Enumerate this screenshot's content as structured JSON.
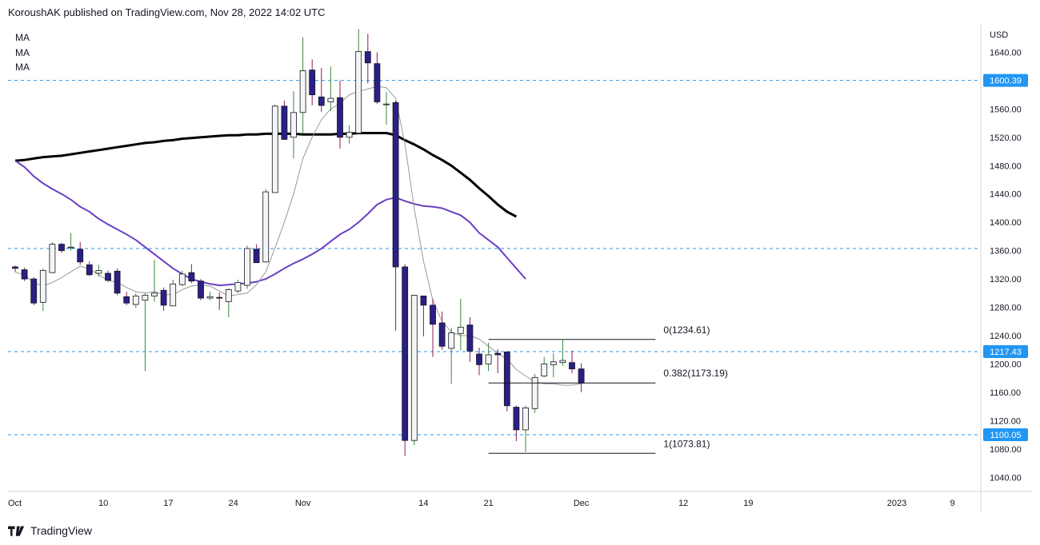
{
  "header": {
    "publisher": "KoroushAK published on TradingView.com, Nov 28, 2022 14:02 UTC"
  },
  "indicators": {
    "labels": [
      "MA",
      "MA",
      "MA"
    ]
  },
  "footer": {
    "brand": "TradingView",
    "logo_icon": "tradingview-logo-icon"
  },
  "colors": {
    "up_body": "#f5f5f5",
    "up_wick": "#3a8a3a",
    "down_body": "#2b1f86",
    "down_wick": "#8e1b55",
    "candle_border": "#131722",
    "ma_short": "#999999",
    "ma_mid": "#6a3fc2",
    "ma_long": "#000000",
    "hline": "#2196f3",
    "tag_bg": "#2196f3"
  },
  "chart_data": {
    "type": "candlestick",
    "y_axis": {
      "currency": "USD",
      "range": [
        1020,
        1680
      ],
      "ticks": [
        1640,
        1600,
        1560,
        1520,
        1480,
        1440,
        1400,
        1360,
        1320,
        1280,
        1240,
        1200,
        1160,
        1120,
        1080,
        1040
      ],
      "tick_labels": [
        "1640.00",
        "1600.00",
        "1560.00",
        "1520.00",
        "1480.00",
        "1440.00",
        "1400.00",
        "1360.00",
        "1320.00",
        "1280.00",
        "1240.00",
        "1200.00",
        "1160.00",
        "1120.00",
        "1080.00",
        "1040.00"
      ]
    },
    "x_axis": {
      "labels": [
        "Oct",
        "10",
        "17",
        "24",
        "Nov",
        "14",
        "21",
        "Dec",
        "12",
        "19",
        "2023",
        "9"
      ],
      "label_index": [
        0,
        9.5,
        16.5,
        23.5,
        31,
        44,
        51,
        61,
        72,
        79,
        95,
        101
      ]
    },
    "candles": [
      {
        "o": 1337,
        "h": 1339,
        "l": 1330,
        "c": 1335
      },
      {
        "o": 1333,
        "h": 1336,
        "l": 1317,
        "c": 1320
      },
      {
        "o": 1320,
        "h": 1323,
        "l": 1283,
        "c": 1286
      },
      {
        "o": 1287,
        "h": 1335,
        "l": 1275,
        "c": 1332
      },
      {
        "o": 1329,
        "h": 1372,
        "l": 1328,
        "c": 1369
      },
      {
        "o": 1369,
        "h": 1371,
        "l": 1357,
        "c": 1360
      },
      {
        "o": 1364,
        "h": 1385,
        "l": 1360,
        "c": 1365
      },
      {
        "o": 1362,
        "h": 1372,
        "l": 1340,
        "c": 1344
      },
      {
        "o": 1340,
        "h": 1345,
        "l": 1324,
        "c": 1326
      },
      {
        "o": 1328,
        "h": 1340,
        "l": 1323,
        "c": 1332
      },
      {
        "o": 1328,
        "h": 1332,
        "l": 1316,
        "c": 1318
      },
      {
        "o": 1331,
        "h": 1335,
        "l": 1297,
        "c": 1300
      },
      {
        "o": 1295,
        "h": 1302,
        "l": 1283,
        "c": 1286
      },
      {
        "o": 1284,
        "h": 1300,
        "l": 1279,
        "c": 1296
      },
      {
        "o": 1290,
        "h": 1300,
        "l": 1190,
        "c": 1297
      },
      {
        "o": 1296,
        "h": 1347,
        "l": 1288,
        "c": 1300
      },
      {
        "o": 1304,
        "h": 1308,
        "l": 1275,
        "c": 1283
      },
      {
        "o": 1282,
        "h": 1319,
        "l": 1282,
        "c": 1313
      },
      {
        "o": 1312,
        "h": 1332,
        "l": 1310,
        "c": 1327
      },
      {
        "o": 1329,
        "h": 1341,
        "l": 1314,
        "c": 1317
      },
      {
        "o": 1317,
        "h": 1320,
        "l": 1290,
        "c": 1293
      },
      {
        "o": 1293,
        "h": 1302,
        "l": 1290,
        "c": 1295
      },
      {
        "o": 1294,
        "h": 1301,
        "l": 1276,
        "c": 1293
      },
      {
        "o": 1288,
        "h": 1307,
        "l": 1266,
        "c": 1305
      },
      {
        "o": 1303,
        "h": 1319,
        "l": 1300,
        "c": 1315
      },
      {
        "o": 1311,
        "h": 1367,
        "l": 1306,
        "c": 1363
      },
      {
        "o": 1362,
        "h": 1369,
        "l": 1343,
        "c": 1343
      },
      {
        "o": 1344,
        "h": 1447,
        "l": 1343,
        "c": 1443
      },
      {
        "o": 1442,
        "h": 1566,
        "l": 1442,
        "c": 1564
      },
      {
        "o": 1564,
        "h": 1572,
        "l": 1517,
        "c": 1517
      },
      {
        "o": 1520,
        "h": 1585,
        "l": 1490,
        "c": 1555
      },
      {
        "o": 1555,
        "h": 1661,
        "l": 1526,
        "c": 1614
      },
      {
        "o": 1615,
        "h": 1630,
        "l": 1565,
        "c": 1580
      },
      {
        "o": 1577,
        "h": 1618,
        "l": 1556,
        "c": 1565
      },
      {
        "o": 1570,
        "h": 1620,
        "l": 1557,
        "c": 1575
      },
      {
        "o": 1576,
        "h": 1600,
        "l": 1504,
        "c": 1520
      },
      {
        "o": 1520,
        "h": 1537,
        "l": 1511,
        "c": 1527
      },
      {
        "o": 1526,
        "h": 1673,
        "l": 1524,
        "c": 1641
      },
      {
        "o": 1641,
        "h": 1666,
        "l": 1596,
        "c": 1625
      },
      {
        "o": 1624,
        "h": 1640,
        "l": 1567,
        "c": 1570
      },
      {
        "o": 1567,
        "h": 1584,
        "l": 1538,
        "c": 1567
      },
      {
        "o": 1569,
        "h": 1572,
        "l": 1247,
        "c": 1337
      },
      {
        "o": 1337,
        "h": 1341,
        "l": 1070,
        "c": 1092
      },
      {
        "o": 1092,
        "h": 1298,
        "l": 1085,
        "c": 1297
      },
      {
        "o": 1296,
        "h": 1296,
        "l": 1239,
        "c": 1283
      },
      {
        "o": 1283,
        "h": 1292,
        "l": 1210,
        "c": 1256
      },
      {
        "o": 1258,
        "h": 1274,
        "l": 1220,
        "c": 1225
      },
      {
        "o": 1222,
        "h": 1251,
        "l": 1172,
        "c": 1244
      },
      {
        "o": 1243,
        "h": 1292,
        "l": 1219,
        "c": 1252
      },
      {
        "o": 1255,
        "h": 1266,
        "l": 1203,
        "c": 1218
      },
      {
        "o": 1214,
        "h": 1223,
        "l": 1184,
        "c": 1199
      },
      {
        "o": 1200,
        "h": 1230,
        "l": 1190,
        "c": 1213
      },
      {
        "o": 1215,
        "h": 1221,
        "l": 1187,
        "c": 1213
      },
      {
        "o": 1217,
        "h": 1218,
        "l": 1133,
        "c": 1141
      },
      {
        "o": 1139,
        "h": 1141,
        "l": 1091,
        "c": 1107
      },
      {
        "o": 1107,
        "h": 1141,
        "l": 1076,
        "c": 1138
      },
      {
        "o": 1137,
        "h": 1186,
        "l": 1131,
        "c": 1181
      },
      {
        "o": 1183,
        "h": 1210,
        "l": 1181,
        "c": 1200
      },
      {
        "o": 1199,
        "h": 1215,
        "l": 1181,
        "c": 1203
      },
      {
        "o": 1202,
        "h": 1234,
        "l": 1197,
        "c": 1205
      },
      {
        "o": 1202,
        "h": 1219,
        "l": 1187,
        "c": 1193
      },
      {
        "o": 1193,
        "h": 1201,
        "l": 1160,
        "c": 1173
      }
    ],
    "ma_short": [
      1330,
      1325,
      1315,
      1310,
      1315,
      1322,
      1330,
      1338,
      1334,
      1326,
      1318,
      1315,
      1308,
      1302,
      1300,
      1302,
      1298,
      1298,
      1305,
      1310,
      1312,
      1310,
      1303,
      1296,
      1298,
      1300,
      1312,
      1330,
      1364,
      1400,
      1440,
      1490,
      1520,
      1545,
      1560,
      1568,
      1580,
      1585,
      1588,
      1592,
      1590,
      1575,
      1510,
      1420,
      1345,
      1290,
      1260,
      1245,
      1240,
      1240,
      1235,
      1225,
      1215,
      1207,
      1192,
      1183,
      1175,
      1172,
      1172,
      1170,
      1170,
      1172
    ],
    "ma_mid": [
      1487,
      1478,
      1465,
      1455,
      1447,
      1440,
      1432,
      1422,
      1415,
      1405,
      1397,
      1390,
      1383,
      1375,
      1365,
      1355,
      1345,
      1335,
      1327,
      1320,
      1316,
      1313,
      1311,
      1312,
      1313,
      1314,
      1316,
      1320,
      1327,
      1335,
      1342,
      1348,
      1355,
      1363,
      1373,
      1383,
      1390,
      1400,
      1412,
      1425,
      1432,
      1435,
      1430,
      1426,
      1423,
      1422,
      1420,
      1415,
      1410,
      1400,
      1385,
      1375,
      1365,
      1350,
      1335,
      1320
    ],
    "ma_long": [
      1487,
      1488,
      1490,
      1492,
      1493,
      1494,
      1496,
      1498,
      1500,
      1502,
      1504,
      1506,
      1508,
      1510,
      1512,
      1513,
      1515,
      1516,
      1518,
      1519,
      1520,
      1521,
      1522,
      1523,
      1523,
      1524,
      1524,
      1525,
      1525,
      1525,
      1525,
      1524,
      1524,
      1524,
      1524,
      1525,
      1525,
      1526,
      1526,
      1526,
      1526,
      1523,
      1516,
      1510,
      1503,
      1495,
      1488,
      1480,
      1470,
      1460,
      1448,
      1437,
      1425,
      1415,
      1408
    ],
    "hlines": [
      {
        "price": 1600.39,
        "label": "1600.39"
      },
      {
        "price": 1363,
        "label": ""
      },
      {
        "price": 1217.43,
        "label": "1217.43"
      },
      {
        "price": 1100.05,
        "label": "1100.05"
      }
    ],
    "fibonacci": {
      "start_index": 51,
      "end_index": 69,
      "levels": [
        {
          "price": 1234.61,
          "label": "0(1234.61)"
        },
        {
          "price": 1173.19,
          "label": "0.382(1173.19)"
        },
        {
          "price": 1073.81,
          "label": "1(1073.81)"
        }
      ]
    }
  }
}
